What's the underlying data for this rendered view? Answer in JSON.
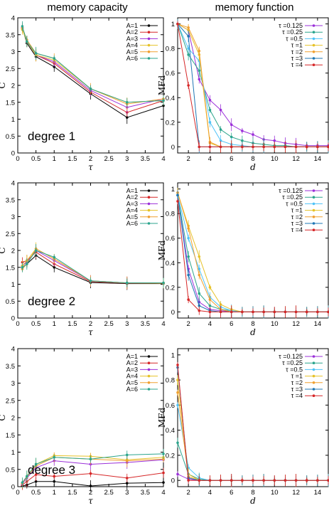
{
  "column_titles": {
    "left": "memory capacity",
    "right": "memory function"
  },
  "chart_data": [
    {
      "id": "mc1",
      "type": "line",
      "annotation": "degree 1",
      "xlabel": "τ",
      "ylabel": "C",
      "xlim": [
        0,
        4
      ],
      "ylim": [
        0,
        4
      ],
      "xticks": [
        "0",
        "0.5",
        "1",
        "1.5",
        "2",
        "2.5",
        "3",
        "3.5",
        "4"
      ],
      "yticks": [
        "0",
        "0.5",
        "1",
        "1.5",
        "2",
        "2.5",
        "3",
        "3.5",
        "4"
      ],
      "x": [
        0.125,
        0.25,
        0.5,
        1,
        2,
        3,
        4
      ],
      "legend_position": "top-right",
      "series": [
        {
          "name": "A=1",
          "color": "#000000",
          "values": [
            3.7,
            3.25,
            2.85,
            2.55,
            1.75,
            1.05,
            1.4
          ]
        },
        {
          "name": "A=2",
          "color": "#d62728",
          "values": [
            3.7,
            3.3,
            2.9,
            2.65,
            1.8,
            1.2,
            1.55
          ]
        },
        {
          "name": "A=3",
          "color": "#9b30d9",
          "values": [
            3.7,
            3.3,
            2.9,
            2.7,
            1.85,
            1.35,
            1.6
          ]
        },
        {
          "name": "A=4",
          "color": "#e6c229",
          "values": [
            3.65,
            3.3,
            2.9,
            2.75,
            1.9,
            1.5,
            1.55
          ]
        },
        {
          "name": "A=5",
          "color": "#f0a030",
          "values": [
            3.7,
            3.35,
            2.95,
            2.8,
            1.9,
            1.45,
            1.6
          ]
        },
        {
          "name": "A=6",
          "color": "#2ca58d",
          "values": [
            3.75,
            3.3,
            2.95,
            2.8,
            1.9,
            1.5,
            1.55
          ]
        }
      ]
    },
    {
      "id": "mf1",
      "type": "line",
      "xlabel": "d",
      "ylabel": "MFd",
      "xlim": [
        1,
        15
      ],
      "ylim": [
        -0.05,
        1.05
      ],
      "xticks": [
        "2",
        "4",
        "6",
        "8",
        "10",
        "12",
        "14"
      ],
      "yticks": [
        "0",
        "0.2",
        "0.4",
        "0.6",
        "0.8",
        "1"
      ],
      "x": [
        1,
        2,
        3,
        4,
        5,
        6,
        7,
        8,
        9,
        10,
        11,
        12,
        13,
        14,
        15
      ],
      "legend_position": "top-right",
      "series": [
        {
          "name": "τ =0.125",
          "color": "#9b30d9",
          "values": [
            1.0,
            0.95,
            0.55,
            0.38,
            0.3,
            0.18,
            0.13,
            0.1,
            0.06,
            0.05,
            0.03,
            0.02,
            0.01,
            0.01,
            0.01
          ]
        },
        {
          "name": "τ =0.25",
          "color": "#2ca58d",
          "values": [
            1.0,
            0.75,
            0.62,
            0.3,
            0.14,
            0.08,
            0.05,
            0.03,
            0.02,
            0.01,
            0.01,
            0.0,
            0.0,
            0.0,
            0.0
          ]
        },
        {
          "name": "τ =0.5",
          "color": "#4fc3f7",
          "values": [
            1.0,
            0.8,
            0.7,
            0.2,
            0.05,
            0.02,
            0.01,
            0.0,
            0.0,
            0.0,
            0.0,
            0.0,
            0.0,
            0.0,
            0.0
          ]
        },
        {
          "name": "τ =1",
          "color": "#e6c229",
          "values": [
            1.0,
            0.95,
            0.75,
            0.03,
            0.0,
            0.0,
            0.0,
            0.0,
            0.0,
            0.0,
            0.0,
            0.0,
            0.0,
            0.0,
            0.0
          ]
        },
        {
          "name": "τ =2",
          "color": "#f0a030",
          "values": [
            1.0,
            0.97,
            0.78,
            0.04,
            0.0,
            0.0,
            0.0,
            0.0,
            0.0,
            0.0,
            0.0,
            0.0,
            0.0,
            0.0,
            0.0
          ]
        },
        {
          "name": "τ =3",
          "color": "#1f77b4",
          "values": [
            1.0,
            0.9,
            0.0,
            0.0,
            0.0,
            0.0,
            0.0,
            0.0,
            0.0,
            0.0,
            0.0,
            0.0,
            0.0,
            0.0,
            0.0
          ]
        },
        {
          "name": "τ =4",
          "color": "#d62728",
          "values": [
            1.0,
            0.5,
            0.0,
            0.0,
            0.0,
            0.0,
            0.0,
            0.0,
            0.0,
            0.0,
            0.0,
            0.0,
            0.0,
            0.0,
            0.0
          ]
        }
      ]
    },
    {
      "id": "mc2",
      "type": "line",
      "annotation": "degree 2",
      "xlabel": "τ",
      "ylabel": "C",
      "xlim": [
        0,
        4
      ],
      "ylim": [
        0,
        4
      ],
      "xticks": [
        "0",
        "0.5",
        "1",
        "1.5",
        "2",
        "2.5",
        "3",
        "3.5",
        "4"
      ],
      "yticks": [
        "0",
        "0.5",
        "1",
        "1.5",
        "2",
        "2.5",
        "3",
        "3.5",
        "4"
      ],
      "x": [
        0.125,
        0.25,
        0.5,
        1,
        2,
        3,
        4
      ],
      "legend_position": "top-right",
      "series": [
        {
          "name": "A=1",
          "color": "#000000",
          "values": [
            1.5,
            1.6,
            1.85,
            1.5,
            1.05,
            1.02,
            1.02
          ]
        },
        {
          "name": "A=2",
          "color": "#d62728",
          "values": [
            1.65,
            1.7,
            1.95,
            1.6,
            1.08,
            1.03,
            1.03
          ]
        },
        {
          "name": "A=3",
          "color": "#9b30d9",
          "values": [
            1.55,
            1.65,
            2.0,
            1.7,
            1.1,
            1.04,
            1.03
          ]
        },
        {
          "name": "A=4",
          "color": "#e6c229",
          "values": [
            1.55,
            1.7,
            2.05,
            1.75,
            1.1,
            1.04,
            1.03
          ]
        },
        {
          "name": "A=5",
          "color": "#f0a030",
          "values": [
            1.45,
            1.6,
            2.05,
            1.75,
            1.1,
            1.04,
            1.04
          ]
        },
        {
          "name": "A=6",
          "color": "#2ca58d",
          "values": [
            1.5,
            1.6,
            2.0,
            1.8,
            1.1,
            1.04,
            1.04
          ]
        }
      ]
    },
    {
      "id": "mf2",
      "type": "line",
      "xlabel": "d",
      "ylabel": "MFd",
      "xlim": [
        1,
        15
      ],
      "ylim": [
        -0.05,
        1.05
      ],
      "xticks": [
        "2",
        "4",
        "6",
        "8",
        "10",
        "12",
        "14"
      ],
      "yticks": [
        "0",
        "0.2",
        "0.4",
        "0.6",
        "0.8",
        "1"
      ],
      "x": [
        1,
        2,
        3,
        4,
        5,
        6,
        7,
        8,
        9,
        10,
        11,
        12,
        13,
        14,
        15
      ],
      "legend_position": "top-right",
      "series": [
        {
          "name": "τ =0.125",
          "color": "#9b30d9",
          "values": [
            0.95,
            0.35,
            0.08,
            0.02,
            0.01,
            0.0,
            0.0,
            0.0,
            0.0,
            0.0,
            0.0,
            0.0,
            0.0,
            0.0,
            0.0
          ]
        },
        {
          "name": "τ =0.25",
          "color": "#2ca58d",
          "values": [
            0.95,
            0.45,
            0.15,
            0.05,
            0.02,
            0.01,
            0.0,
            0.0,
            0.0,
            0.0,
            0.0,
            0.0,
            0.0,
            0.0,
            0.0
          ]
        },
        {
          "name": "τ =0.5",
          "color": "#4fc3f7",
          "values": [
            0.95,
            0.6,
            0.35,
            0.12,
            0.04,
            0.01,
            0.0,
            0.0,
            0.0,
            0.0,
            0.0,
            0.0,
            0.0,
            0.0,
            0.0
          ]
        },
        {
          "name": "τ =1",
          "color": "#e6c229",
          "values": [
            0.97,
            0.7,
            0.45,
            0.2,
            0.06,
            0.02,
            0.0,
            0.0,
            0.0,
            0.0,
            0.0,
            0.0,
            0.0,
            0.0,
            0.0
          ]
        },
        {
          "name": "τ =2",
          "color": "#f0a030",
          "values": [
            0.97,
            0.68,
            0.3,
            0.1,
            0.02,
            0.0,
            0.0,
            0.0,
            0.0,
            0.0,
            0.0,
            0.0,
            0.0,
            0.0,
            0.0
          ]
        },
        {
          "name": "τ =3",
          "color": "#1f77b4",
          "values": [
            0.95,
            0.3,
            0.05,
            0.01,
            0.0,
            0.0,
            0.0,
            0.0,
            0.0,
            0.0,
            0.0,
            0.0,
            0.0,
            0.0,
            0.0
          ]
        },
        {
          "name": "τ =4",
          "color": "#d62728",
          "values": [
            0.9,
            0.1,
            0.01,
            0.0,
            0.0,
            0.0,
            0.0,
            0.0,
            0.0,
            0.0,
            0.0,
            0.0,
            0.0,
            0.0,
            0.0
          ]
        }
      ]
    },
    {
      "id": "mc3",
      "type": "line",
      "annotation": "degree 3",
      "xlabel": "τ",
      "ylabel": "C",
      "xlim": [
        0,
        4
      ],
      "ylim": [
        0,
        4
      ],
      "xticks": [
        "0",
        "0.5",
        "1",
        "1.5",
        "2",
        "2.5",
        "3",
        "3.5",
        "4"
      ],
      "yticks": [
        "0",
        "0.5",
        "1",
        "1.5",
        "2",
        "2.5",
        "3",
        "3.5",
        "4"
      ],
      "x": [
        0.125,
        0.25,
        0.5,
        1,
        2,
        3,
        4
      ],
      "legend_position": "top-right",
      "series": [
        {
          "name": "A=1",
          "color": "#000000",
          "values": [
            0.02,
            0.05,
            0.15,
            0.15,
            0.02,
            0.1,
            0.12
          ]
        },
        {
          "name": "A=2",
          "color": "#d62728",
          "values": [
            0.05,
            0.15,
            0.35,
            0.3,
            0.38,
            0.25,
            0.4
          ]
        },
        {
          "name": "A=3",
          "color": "#9b30d9",
          "values": [
            0.08,
            0.25,
            0.55,
            0.75,
            0.65,
            0.7,
            0.78
          ]
        },
        {
          "name": "A=4",
          "color": "#e6c229",
          "values": [
            0.1,
            0.3,
            0.65,
            0.9,
            0.88,
            0.78,
            0.85
          ]
        },
        {
          "name": "A=5",
          "color": "#f0a030",
          "values": [
            0.1,
            0.28,
            0.6,
            0.85,
            0.8,
            0.75,
            0.8
          ]
        },
        {
          "name": "A=6",
          "color": "#2ca58d",
          "values": [
            0.12,
            0.3,
            0.65,
            0.85,
            0.8,
            0.92,
            0.95
          ]
        }
      ]
    },
    {
      "id": "mf3",
      "type": "line",
      "xlabel": "d",
      "ylabel": "MFd",
      "xlim": [
        1,
        15
      ],
      "ylim": [
        -0.05,
        1.05
      ],
      "xticks": [
        "2",
        "4",
        "6",
        "8",
        "10",
        "12",
        "14"
      ],
      "yticks": [
        "0",
        "0.2",
        "0.4",
        "0.6",
        "0.8",
        "1"
      ],
      "x": [
        1,
        2,
        3,
        4,
        5,
        6,
        7,
        8,
        9,
        10,
        11,
        12,
        13,
        14,
        15
      ],
      "legend_position": "top-right",
      "series": [
        {
          "name": "τ =0.125",
          "color": "#9b30d9",
          "values": [
            0.05,
            0.01,
            0.0,
            0.0,
            0.0,
            0.0,
            0.0,
            0.0,
            0.0,
            0.0,
            0.0,
            0.0,
            0.0,
            0.0,
            0.0
          ]
        },
        {
          "name": "τ =0.25",
          "color": "#2ca58d",
          "values": [
            0.3,
            0.05,
            0.01,
            0.0,
            0.0,
            0.0,
            0.0,
            0.0,
            0.0,
            0.0,
            0.0,
            0.0,
            0.0,
            0.0,
            0.0
          ]
        },
        {
          "name": "τ =0.5",
          "color": "#4fc3f7",
          "values": [
            0.6,
            0.1,
            0.02,
            0.0,
            0.0,
            0.0,
            0.0,
            0.0,
            0.0,
            0.0,
            0.0,
            0.0,
            0.0,
            0.0,
            0.0
          ]
        },
        {
          "name": "τ =1",
          "color": "#e6c229",
          "values": [
            0.8,
            0.05,
            0.0,
            0.0,
            0.0,
            0.0,
            0.0,
            0.0,
            0.0,
            0.0,
            0.0,
            0.0,
            0.0,
            0.0,
            0.0
          ]
        },
        {
          "name": "τ =2",
          "color": "#f0a030",
          "values": [
            0.7,
            0.03,
            0.0,
            0.0,
            0.0,
            0.0,
            0.0,
            0.0,
            0.0,
            0.0,
            0.0,
            0.0,
            0.0,
            0.0,
            0.0
          ]
        },
        {
          "name": "τ =3",
          "color": "#1f77b4",
          "values": [
            0.9,
            0.02,
            0.0,
            0.0,
            0.0,
            0.0,
            0.0,
            0.0,
            0.0,
            0.0,
            0.0,
            0.0,
            0.0,
            0.0,
            0.0
          ]
        },
        {
          "name": "τ =4",
          "color": "#d62728",
          "values": [
            0.92,
            0.0,
            0.0,
            0.0,
            0.0,
            0.0,
            0.0,
            0.0,
            0.0,
            0.0,
            0.0,
            0.0,
            0.0,
            0.0,
            0.0
          ]
        }
      ]
    }
  ]
}
